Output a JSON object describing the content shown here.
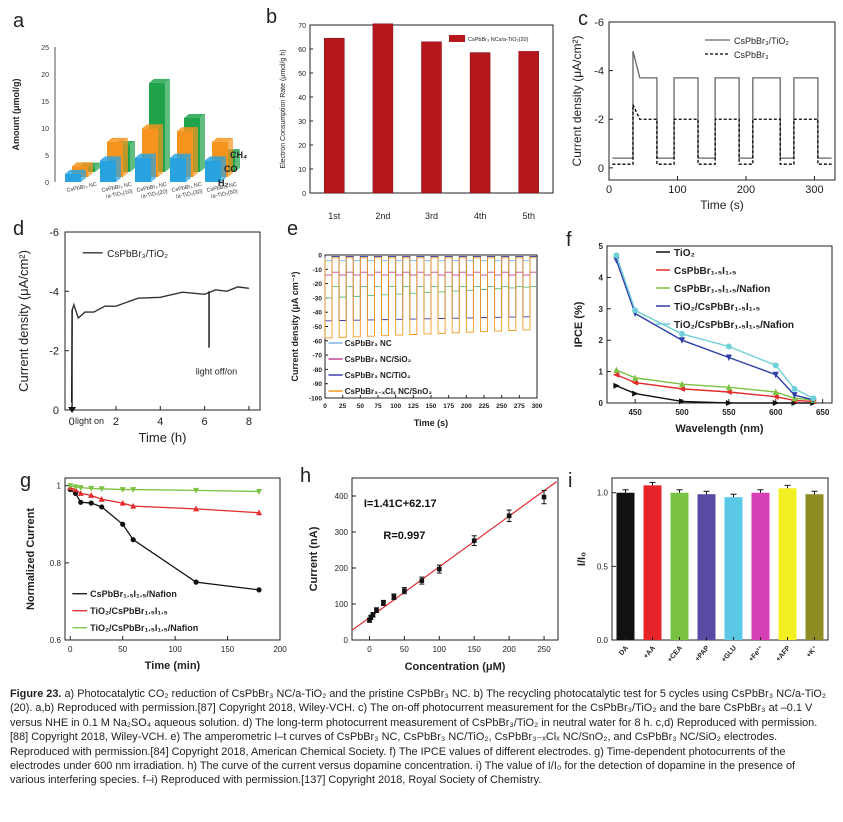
{
  "panels": {
    "a": {
      "label": "a"
    },
    "b": {
      "label": "b"
    },
    "c": {
      "label": "c"
    },
    "d": {
      "label": "d"
    },
    "e": {
      "label": "e"
    },
    "f": {
      "label": "f"
    },
    "g": {
      "label": "g"
    },
    "h": {
      "label": "h"
    },
    "i": {
      "label": "i"
    }
  },
  "chart_data": [
    {
      "id": "a",
      "type": "bar",
      "ylabel": "Amount (μmol/g)",
      "ylim": [
        0,
        25
      ],
      "yticks": [
        "0",
        "5",
        "10",
        "15",
        "20",
        "25"
      ],
      "categories": [
        "CsPbBr₃ NC",
        "CsPbBr₃ NC /a-TiO₂(10)",
        "CsPbBr₃ NC /a-TiO₂(20)",
        "CsPbBr₃ NC /a-TiO₂(30)",
        "CsPbBr₃ NC /a-TiO₂(50)"
      ],
      "series": [
        {
          "name": "H₂",
          "color": "#29a3e0",
          "values": [
            1.5,
            4.0,
            4.5,
            4.5,
            4.0
          ]
        },
        {
          "name": "CO",
          "color": "#f7941d",
          "values": [
            2.0,
            6.5,
            9.0,
            8.5,
            6.5
          ]
        },
        {
          "name": "CH₄",
          "color": "#1fa34a",
          "values": [
            1.0,
            5.0,
            16.5,
            10.0,
            3.5
          ]
        }
      ]
    },
    {
      "id": "b",
      "type": "bar",
      "ylabel": "Electron Consumption Rate (μmol/g h)",
      "ylim": [
        0,
        70
      ],
      "yticks": [
        "0",
        "10",
        "20",
        "30",
        "40",
        "50",
        "60",
        "70"
      ],
      "categories": [
        "1st",
        "2nd",
        "3rd",
        "4th",
        "5th"
      ],
      "series": [
        {
          "name": "CsPbBr₃ NCs/a-TiO₂(20)",
          "color": "#b5171c",
          "values": [
            64.5,
            70.5,
            63.0,
            58.5,
            59.0
          ]
        }
      ]
    },
    {
      "id": "c",
      "type": "line",
      "xlabel": "Time (s)",
      "ylabel": "Current density (μA/cm²)",
      "xlim": [
        0,
        330
      ],
      "ylim": [
        0.5,
        -6
      ],
      "xticks": [
        "0",
        "100",
        "200",
        "300"
      ],
      "yticks": [
        "0",
        "-2",
        "-4",
        "-6"
      ],
      "series": [
        {
          "name": "CsPbBr₃/TiO₂",
          "on": -4.8,
          "onSteady": -3.7
        },
        {
          "name": "CsPbBr₃",
          "on": -2.6,
          "onSteady": -2.0
        }
      ]
    },
    {
      "id": "d",
      "type": "line",
      "xlabel": "Time (h)",
      "ylabel": "Current density (μA/cm²)",
      "xlim": [
        -0.3,
        8.5
      ],
      "ylim": [
        0,
        -6
      ],
      "xticks": [
        "0",
        "2",
        "4",
        "6",
        "8"
      ],
      "yticks": [
        "0",
        "-2",
        "-4",
        "-6"
      ],
      "series": [
        {
          "name": "CsPbBr₃/TiO₂"
        }
      ],
      "annotations": [
        "light on",
        "light off/on"
      ]
    },
    {
      "id": "e",
      "type": "line",
      "xlabel": "Time (s)",
      "ylabel": "Current density (μA cm⁻²)",
      "xlim": [
        0,
        300
      ],
      "ylim": [
        -100,
        0
      ],
      "xticks": [
        "0",
        "25",
        "50",
        "75",
        "100",
        "125",
        "150",
        "175",
        "200",
        "225",
        "250",
        "275",
        "300"
      ],
      "yticks": [
        "0",
        "-10",
        "-20",
        "-30",
        "-40",
        "-50",
        "-60",
        "-70",
        "-80",
        "-90",
        "-100"
      ],
      "series": [
        {
          "name": "CsPbBr₃ NC",
          "color": "#7fb7e6",
          "on": -4,
          "off": -1
        },
        {
          "name": "CsPbBr₃ NC/SiO₂",
          "color": "#c4449a",
          "on": -14,
          "off": -12
        },
        {
          "name": "CsPbBr₃ NC/TiO₂",
          "color": "#3f3fb0",
          "on": -46,
          "off": -1
        },
        {
          "name": "CsPbBr₃₋ₓClₓ NC/SnO₂",
          "color": "#f49b1f",
          "on": -58,
          "off": -2
        },
        {
          "name": "",
          "color": "#5cc46b",
          "on": -30,
          "off": -22
        }
      ]
    },
    {
      "id": "f",
      "type": "line",
      "xlabel": "Wavelength (nm)",
      "ylabel": "IPCE (%)",
      "xlim": [
        420,
        660
      ],
      "ylim": [
        0,
        5
      ],
      "xticks": [
        "450",
        "500",
        "550",
        "600",
        "650"
      ],
      "yticks": [
        "0",
        "1",
        "2",
        "3",
        "4",
        "5"
      ],
      "x": [
        430,
        450,
        500,
        550,
        600,
        620,
        640
      ],
      "series": [
        {
          "name": "TiO₂",
          "color": "#111111",
          "values": [
            0.55,
            0.3,
            0.05,
            0.0,
            0.0,
            0.0,
            0.0
          ]
        },
        {
          "name": "CsPbBr₁.₅I₁.₅",
          "color": "#e22b2b",
          "values": [
            0.9,
            0.65,
            0.45,
            0.35,
            0.2,
            0.08,
            0.05
          ]
        },
        {
          "name": "CsPbBr₁.₅I₁.₅/Nafion",
          "color": "#7cc242",
          "values": [
            1.05,
            0.8,
            0.6,
            0.5,
            0.35,
            0.15,
            0.1
          ]
        },
        {
          "name": "TiO₂/CsPbBr₁.₅I₁.₅",
          "color": "#2e3fa8",
          "values": [
            4.55,
            2.85,
            2.0,
            1.45,
            0.9,
            0.25,
            0.1
          ]
        },
        {
          "name": "TiO₂/CsPbBr₁.₅I₁.₅/Nafion",
          "color": "#6fd0d8",
          "values": [
            4.7,
            2.95,
            2.2,
            1.8,
            1.2,
            0.45,
            0.15
          ]
        }
      ]
    },
    {
      "id": "g",
      "type": "line",
      "xlabel": "Time (min)",
      "ylabel": "Normalized Current",
      "xlim": [
        -5,
        200
      ],
      "ylim": [
        0.6,
        1.02
      ],
      "xticks": [
        "0",
        "50",
        "100",
        "150",
        "200"
      ],
      "yticks": [
        "0.6",
        "0.8",
        "1"
      ],
      "x": [
        0,
        5,
        10,
        20,
        30,
        50,
        60,
        120,
        180
      ],
      "series": [
        {
          "name": "CsPbBr₁.₅I₁.₅/Nafion",
          "color": "#111111",
          "values": [
            0.99,
            0.98,
            0.957,
            0.955,
            0.945,
            0.9,
            0.86,
            0.75,
            0.73
          ]
        },
        {
          "name": "TiO₂/CsPbBr₁.₅I₁.₅",
          "color": "#e22b2b",
          "values": [
            0.995,
            0.99,
            0.98,
            0.975,
            0.965,
            0.955,
            0.947,
            0.94,
            0.93
          ]
        },
        {
          "name": "TiO₂/CsPbBr₁.₅I₁.₅/Nafion",
          "color": "#7cc242",
          "values": [
            1.0,
            0.997,
            0.995,
            0.993,
            0.992,
            0.99,
            0.99,
            0.988,
            0.985
          ]
        }
      ]
    },
    {
      "id": "h",
      "type": "scatter",
      "xlabel": "Concentration (μM)",
      "ylabel": "Current (nA)",
      "xlim": [
        -25,
        270
      ],
      "ylim": [
        0,
        450
      ],
      "xticks": [
        "0",
        "50",
        "100",
        "150",
        "200",
        "250"
      ],
      "yticks": [
        "0",
        "100",
        "200",
        "300",
        "400"
      ],
      "x": [
        0,
        2,
        5,
        10,
        20,
        35,
        50,
        75,
        100,
        150,
        200,
        250
      ],
      "values": [
        55,
        63,
        70,
        83,
        103,
        120,
        137,
        165,
        197,
        276,
        345,
        397
      ],
      "equation": "I=1.41C+62.17",
      "r": "R=0.997"
    },
    {
      "id": "i",
      "type": "bar",
      "ylabel": "I/I₀",
      "ylim": [
        0,
        1.1
      ],
      "yticks": [
        "0.0",
        "0.5",
        "1.0"
      ],
      "categories": [
        "DA",
        "+AA",
        "+CEA",
        "+PAP",
        "+GLU",
        "+Fe³⁺",
        "+AFP",
        "+K⁺"
      ],
      "values": [
        1.0,
        1.05,
        1.0,
        0.99,
        0.97,
        1.0,
        1.03,
        0.99
      ],
      "colors": [
        "#111111",
        "#e8242b",
        "#7cc242",
        "#5b4aa3",
        "#5bc8e6",
        "#d63fb5",
        "#f2ef22",
        "#8d8d23"
      ]
    }
  ],
  "caption": {
    "lead": "Figure 23.",
    "text": " a) Photocatalytic CO₂ reduction of CsPbBr₃ NC/a-TiO₂ and the pristine CsPbBr₃ NC. b) The recycling photocatalytic test for 5 cycles using CsPbBr₃ NC/a-TiO₂ (20). a,b) Reproduced with permission.[87] Copyright 2018, Wiley-VCH. c) The on-off photocurrent measurement for the CsPbBr₃/TiO₂ and the bare CsPbBr₃ at –0.1 V versus NHE in 0.1 M Na₂SO₄ aqueous solution. d) The long-term photocurrent measurement of CsPbBr₃/TiO₂ in neutral water for 8 h. c,d) Reproduced with permission.[88] Copyright 2018, Wiley-VCH. e) The amperometric I–t curves of CsPbBr₃ NC, CsPbBr₃ NC/TiO₂, CsPbBr₃₋ₓClₓ NC/SnO₂, and CsPbBr₃ NC/SiO₂ electrodes. Reproduced with permission.[84] Copyright 2018, American Chemical Society. f) The IPCE values of different electrodes. g) Time-dependent photocurrents of the electrodes under 600 nm irradiation. h) The curve of the current versus dopamine concentration. i) The value of I/I₀ for the detection of dopamine in the presence of various interfering species. f–i) Reproduced with permission.[137] Copyright 2018, Royal Society of Chemistry."
  }
}
